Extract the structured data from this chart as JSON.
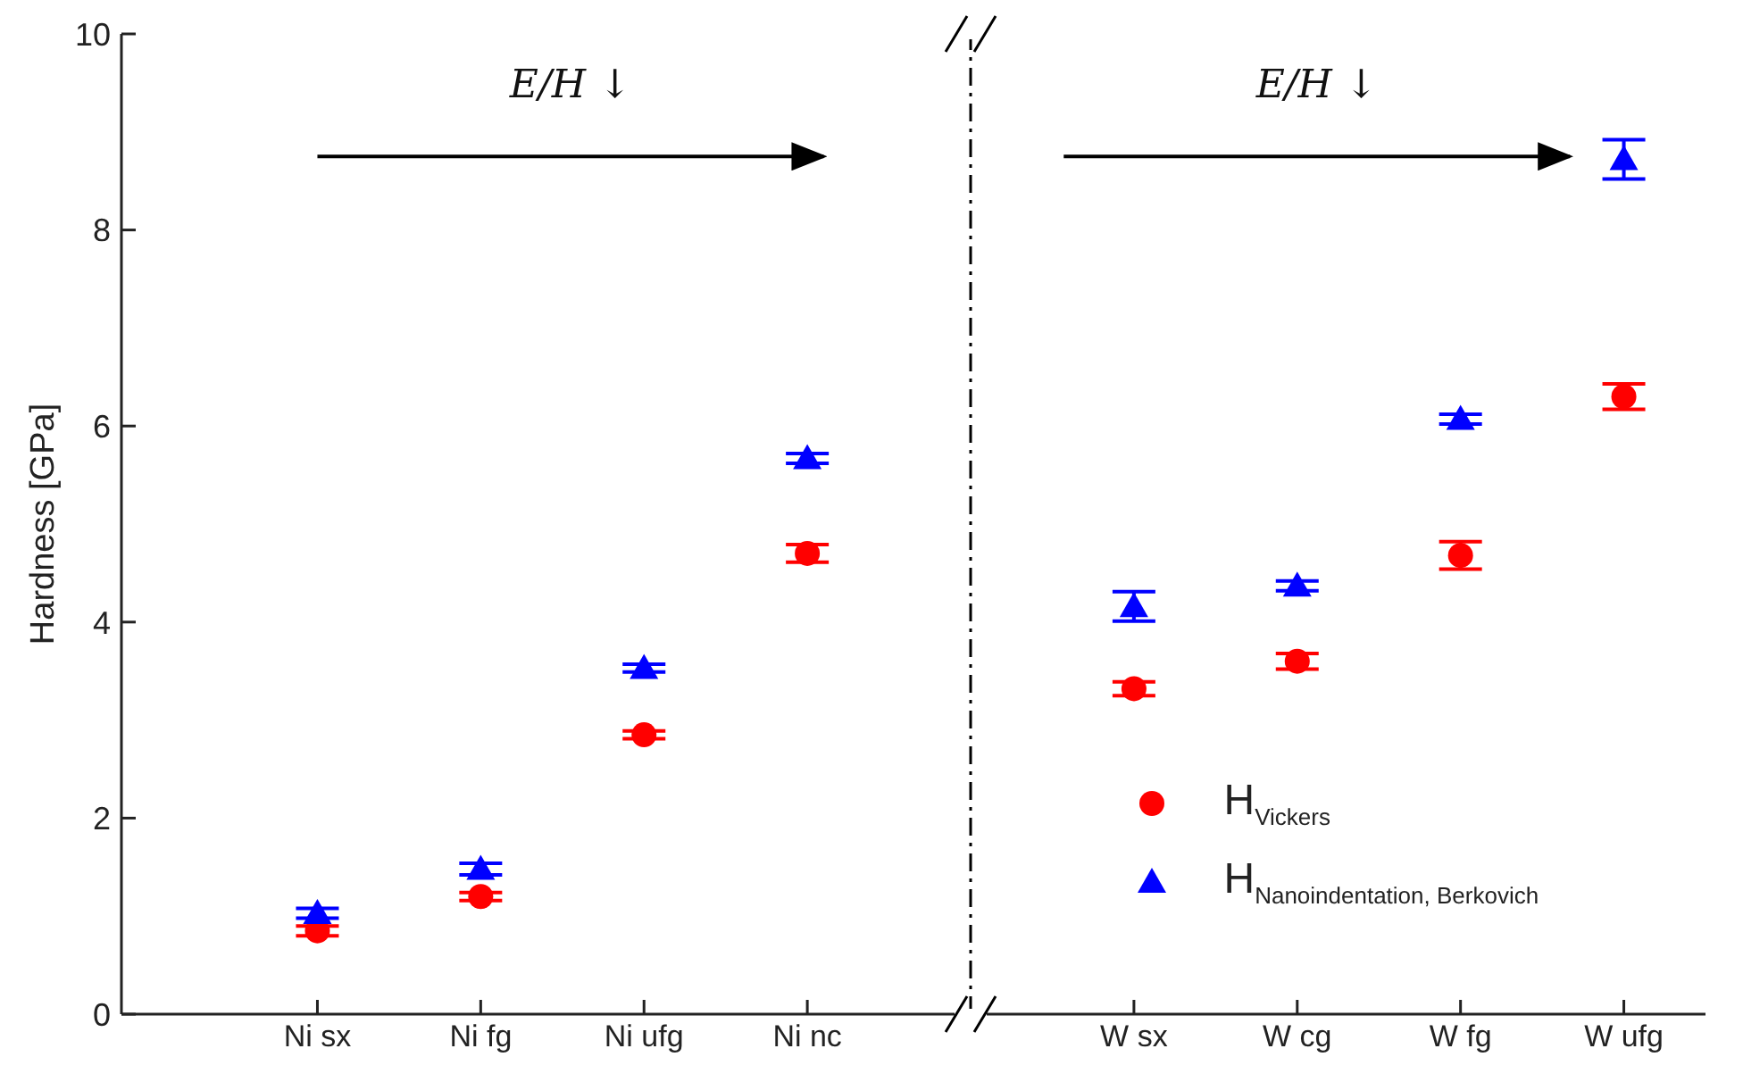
{
  "chart_data": {
    "type": "scatter",
    "ylabel": "Hardness [GPa]",
    "categories": [
      "Ni sx",
      "Ni fg",
      "Ni ufg",
      "Ni nc",
      null,
      "W sx",
      "W cg",
      "W fg",
      "W ufg"
    ],
    "series": [
      {
        "name": "H$_{Vickers}$",
        "color": "#ff0000",
        "marker": "circle",
        "values": [
          0.85,
          1.2,
          2.85,
          4.7,
          null,
          3.32,
          3.6,
          4.68,
          6.3
        ],
        "errors": [
          0.05,
          0.04,
          0.04,
          0.09,
          null,
          0.07,
          0.08,
          0.14,
          0.13
        ]
      },
      {
        "name": "H$_{Nanoindentation, Berkovich}$",
        "color": "#0000ff",
        "marker": "triangle",
        "values": [
          1.03,
          1.48,
          3.53,
          5.67,
          null,
          4.16,
          4.37,
          6.07,
          8.72
        ],
        "errors": [
          0.05,
          0.06,
          0.04,
          0.05,
          null,
          0.15,
          0.05,
          0.05,
          0.2
        ]
      }
    ],
    "ylim": [
      0,
      10
    ],
    "yticks": [
      0,
      2,
      4,
      6,
      8,
      10
    ],
    "legend": "bottom right",
    "annotations": [
      "E/H ↓",
      "E/H ↓"
    ]
  }
}
